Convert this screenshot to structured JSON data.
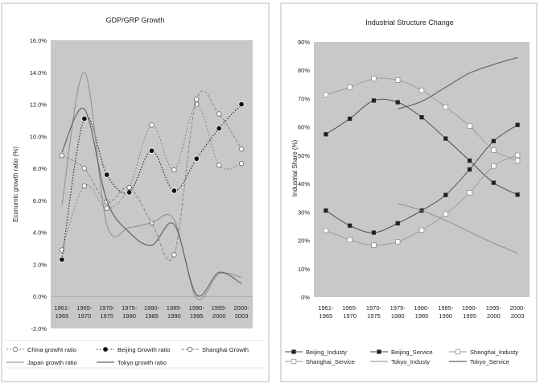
{
  "chart_data": [
    {
      "type": "line",
      "title": "GDP/GRP Growth",
      "ylabel": "Economic growth ratio (%)",
      "xlabel": "",
      "ylim": [
        -2,
        16
      ],
      "yticks": [
        "-2.0%",
        "0.0%",
        "2.0%",
        "4.0%",
        "6.0%",
        "8.0%",
        "10.0%",
        "12.0%",
        "14.0%",
        "16.0%"
      ],
      "categories": [
        [
          "1961-",
          "1965"
        ],
        [
          "1965-",
          "1970"
        ],
        [
          "1970-",
          "1975"
        ],
        [
          "1975-",
          "1980"
        ],
        [
          "1980-",
          "1985"
        ],
        [
          "1985-",
          "1990"
        ],
        [
          "1990-",
          "1995"
        ],
        [
          "1995-",
          "2000"
        ],
        [
          "2000-",
          "2003"
        ]
      ],
      "grid": false,
      "legend_position": "bottom",
      "series": [
        {
          "name": "China growht ratio",
          "style": "open-dot",
          "values": [
            2.9,
            6.9,
            5.5,
            6.8,
            10.7,
            7.9,
            12.0,
            8.2,
            8.3
          ]
        },
        {
          "name": "Beijing Growth ratio",
          "style": "filled-dot",
          "values": [
            2.3,
            11.1,
            7.6,
            6.5,
            9.1,
            6.6,
            8.6,
            10.5,
            12.0
          ]
        },
        {
          "name": "Shanghai Growth",
          "style": "open-dot-dashed",
          "values": [
            8.8,
            8.0,
            5.9,
            6.8,
            4.6,
            2.6,
            12.3,
            11.4,
            9.2
          ]
        },
        {
          "name": "Japan growth ratio",
          "style": "thin-line",
          "values": [
            5.7,
            14.0,
            4.5,
            4.3,
            4.6,
            4.8,
            -0.1,
            1.4,
            1.2
          ]
        },
        {
          "name": "Tokyo growth ratio",
          "style": "line",
          "values": [
            9.0,
            11.7,
            6.0,
            4.0,
            3.2,
            4.5,
            0.1,
            1.5,
            0.8
          ]
        }
      ]
    },
    {
      "type": "line",
      "title": "Industrial Structure Change",
      "ylabel": "Industrial Share (%)",
      "xlabel": "",
      "ylim": [
        0,
        90
      ],
      "yticks": [
        "0%",
        "10%",
        "20%",
        "30%",
        "40%",
        "50%",
        "60%",
        "70%",
        "80%",
        "90%"
      ],
      "categories": [
        [
          "1961-",
          "1965"
        ],
        [
          "1965-",
          "1970"
        ],
        [
          "1970-",
          "1975"
        ],
        [
          "1975-",
          "1980"
        ],
        [
          "1980-",
          "1985"
        ],
        [
          "1985-",
          "1990"
        ],
        [
          "1990-",
          "1995"
        ],
        [
          "1995-",
          "2000"
        ],
        [
          "2000-",
          "2003"
        ]
      ],
      "grid": false,
      "legend_position": "bottom",
      "series": [
        {
          "name": "Beijing_Industy",
          "style": "filled-square",
          "values": [
            57.4,
            62.9,
            69.3,
            68.7,
            63.4,
            55.9,
            48.1,
            40.3,
            36.1
          ]
        },
        {
          "name": "Beijing_Service",
          "style": "filled-square",
          "values": [
            30.5,
            25.2,
            22.7,
            26.0,
            30.5,
            36.0,
            45.0,
            55.0,
            60.7
          ]
        },
        {
          "name": "Shanghai_Industy",
          "style": "open-square",
          "values": [
            71.3,
            74.0,
            77.0,
            76.5,
            72.9,
            67.0,
            60.3,
            51.8,
            48.1
          ]
        },
        {
          "name": "Shanghai_Service",
          "style": "open-square",
          "values": [
            23.5,
            20.2,
            18.3,
            19.5,
            23.6,
            29.3,
            36.8,
            46.2,
            50.0
          ]
        },
        {
          "name": "Tokyo_Industy",
          "style": "thin-line",
          "values": [
            null,
            null,
            null,
            33.0,
            30.5,
            27.0,
            23.0,
            19.0,
            15.5
          ]
        },
        {
          "name": "Tokyo_Service",
          "style": "line",
          "values": [
            null,
            null,
            null,
            66.3,
            69.0,
            74.0,
            79.0,
            82.0,
            84.5
          ]
        }
      ]
    }
  ]
}
